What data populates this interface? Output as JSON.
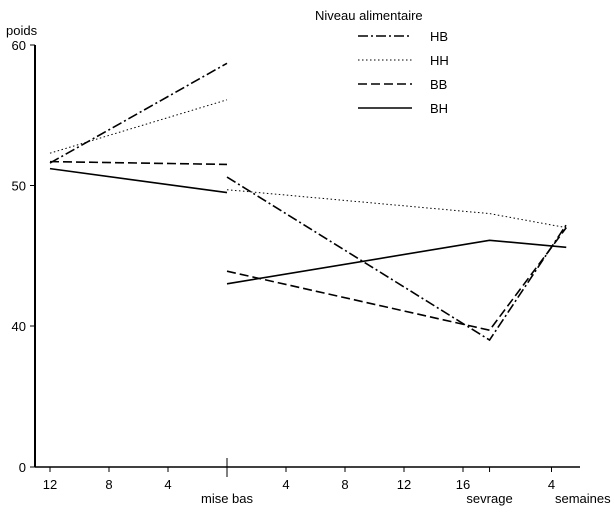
{
  "chart_data": {
    "type": "line",
    "ylabel": "poids",
    "xlabel": "semaines",
    "ylim": [
      0,
      60
    ],
    "yticks": [
      0,
      40,
      50,
      60
    ],
    "xticks": [
      {
        "w": -12,
        "label": "12"
      },
      {
        "w": -8,
        "label": "8"
      },
      {
        "w": -4,
        "label": "4"
      },
      {
        "w": 0,
        "label": "mise bas"
      },
      {
        "w": 4,
        "label": "4"
      },
      {
        "w": 8,
        "label": "8"
      },
      {
        "w": 12,
        "label": "12"
      },
      {
        "w": 16,
        "label": "16"
      },
      {
        "w": 17.8,
        "label": "sevrage"
      },
      {
        "w": 22,
        "label": "4"
      }
    ],
    "legend_title": "Niveau alimentaire",
    "series": [
      {
        "name": "HB",
        "style": "dashdot",
        "segments": [
          [
            [
              -12,
              51.6
            ],
            [
              0,
              58.7
            ]
          ],
          [
            [
              0,
              50.6
            ],
            [
              17.8,
              39.0
            ],
            [
              23,
              47.2
            ]
          ]
        ]
      },
      {
        "name": "HH",
        "style": "dotted",
        "segments": [
          [
            [
              -12,
              52.3
            ],
            [
              0,
              56.1
            ]
          ],
          [
            [
              0,
              49.7
            ],
            [
              17.8,
              48.0
            ],
            [
              23,
              47.0
            ]
          ]
        ]
      },
      {
        "name": "BB",
        "style": "dashed",
        "segments": [
          [
            [
              -12,
              51.7
            ],
            [
              0,
              51.5
            ]
          ],
          [
            [
              0,
              43.9
            ],
            [
              17.8,
              39.7
            ],
            [
              23,
              47.0
            ]
          ]
        ]
      },
      {
        "name": "BH",
        "style": "solid",
        "segments": [
          [
            [
              -12,
              51.2
            ],
            [
              0,
              49.5
            ]
          ],
          [
            [
              0,
              43.0
            ],
            [
              17.8,
              46.1
            ],
            [
              23,
              45.6
            ]
          ]
        ]
      }
    ]
  }
}
